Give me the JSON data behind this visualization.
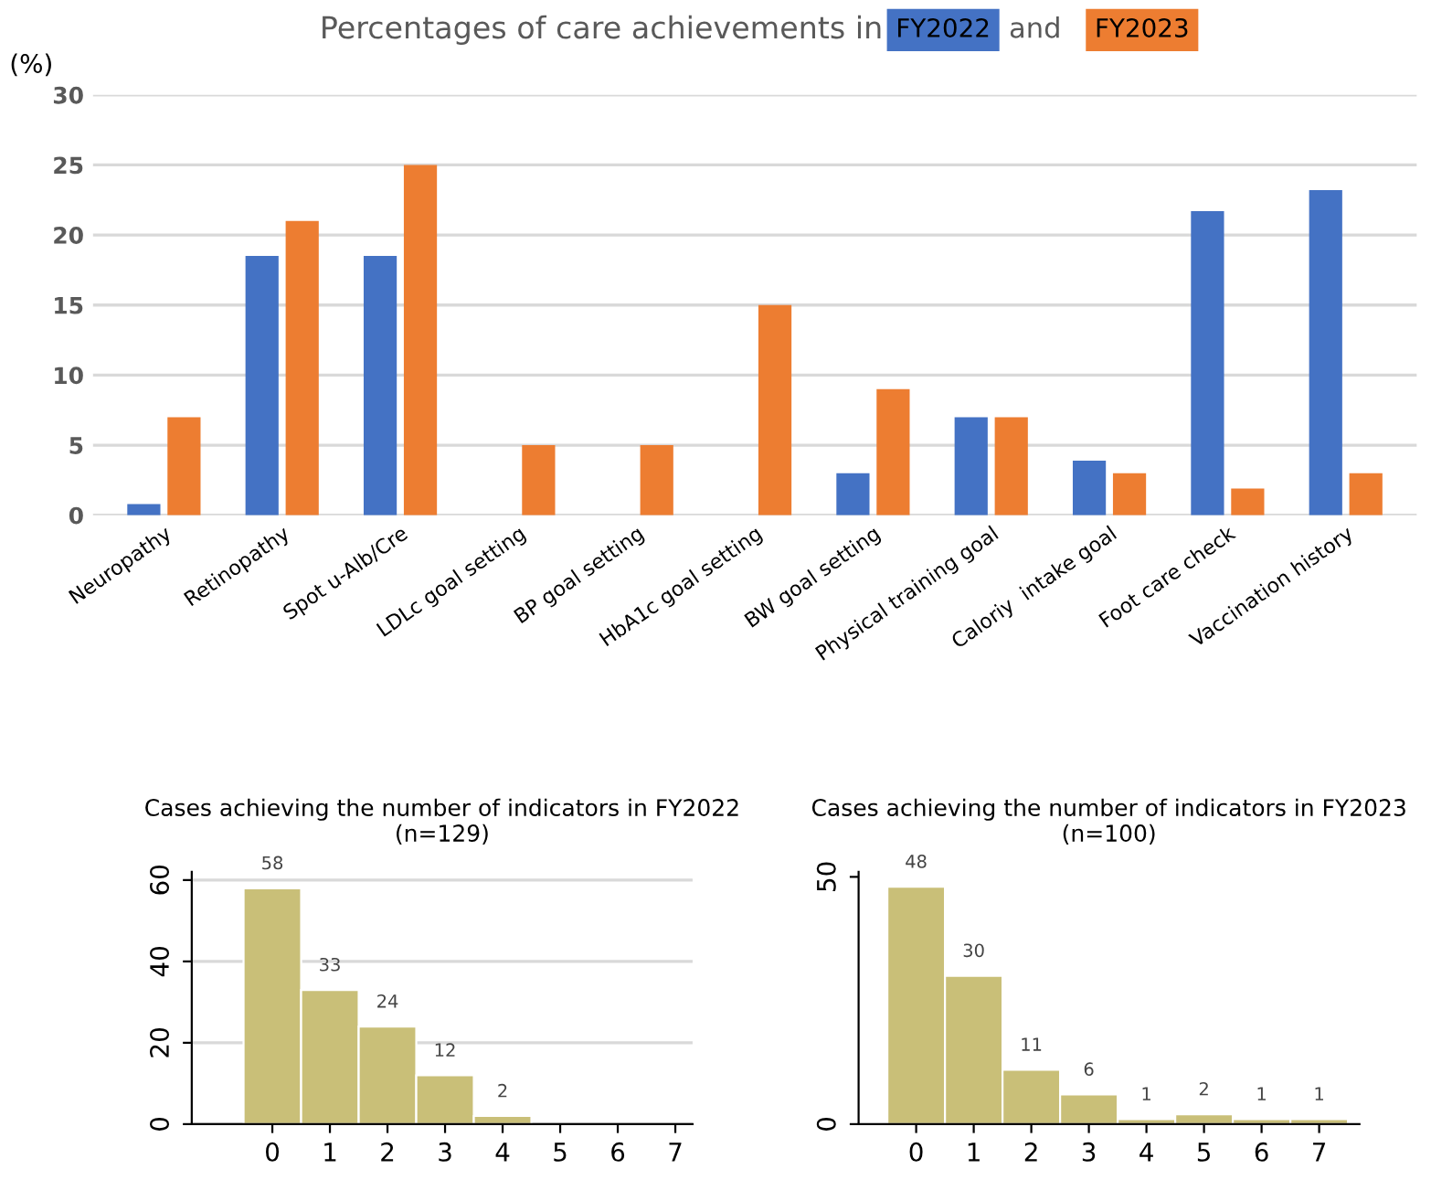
{
  "chart_data": [
    {
      "type": "bar",
      "title": "Percentages of care achievements in",
      "ylabel": "(%)",
      "annotations": [
        "and"
      ],
      "categories": [
        "Neuropathy",
        "Retinopathy",
        "Spot u-Alb/Cre",
        "LDLc goal setting",
        "BP goal setting",
        "HbA1c goal setting",
        "BW goal setting",
        "Physical training goal",
        "Caloriy  intake goal",
        "Foot care check",
        "Vaccination history"
      ],
      "series": [
        {
          "name": "FY2022",
          "color": "#4472c4",
          "values": [
            0.8,
            18.5,
            18.5,
            0,
            0,
            0,
            3.0,
            7.0,
            3.9,
            21.7,
            23.2
          ]
        },
        {
          "name": "FY2023",
          "color": "#ed7d31",
          "values": [
            7.0,
            21.0,
            25.0,
            5.0,
            5.0,
            15.0,
            9.0,
            7.0,
            3.0,
            1.9,
            3.0
          ]
        }
      ],
      "ylim": [
        0,
        30
      ],
      "yticks": [
        0,
        5,
        10,
        15,
        20,
        25,
        30
      ],
      "grid": "y",
      "legend": "top"
    },
    {
      "type": "histogram",
      "title": "Cases achieving the number of indicators in FY2022",
      "subtitle": "(n=129)",
      "bins": [
        -0.5,
        0.5,
        1.5,
        2.5,
        3.5,
        4.5,
        5.5,
        6.5,
        7.5
      ],
      "values": [
        58,
        33,
        24,
        12,
        2,
        0,
        0,
        0
      ],
      "color": "#c9bf78",
      "value_labels": [
        "58",
        "33",
        "24",
        "12",
        "2",
        null,
        null,
        null
      ],
      "xlim": [
        -1.4,
        7.3
      ],
      "xticks": [
        0,
        1,
        2,
        3,
        4,
        5,
        6,
        7
      ],
      "ylim": [
        0,
        62
      ],
      "yticks": [
        0,
        20,
        40,
        60
      ],
      "grid": "y"
    },
    {
      "type": "histogram",
      "title": "Cases achieving the number of indicators in FY2023",
      "subtitle": "(n=100)",
      "bins": [
        -0.5,
        0.5,
        1.5,
        2.5,
        3.5,
        4.5,
        5.5,
        6.5,
        7.5
      ],
      "values": [
        48,
        30,
        11,
        6,
        1,
        2,
        1,
        1
      ],
      "color": "#c9bf78",
      "data_labels": true,
      "xlim": [
        -1.0,
        7.7
      ],
      "xticks": [
        0,
        1,
        2,
        3,
        4,
        5,
        6,
        7
      ],
      "ylim": [
        0,
        51
      ],
      "yticks": [
        0,
        50
      ],
      "grid": false
    }
  ]
}
